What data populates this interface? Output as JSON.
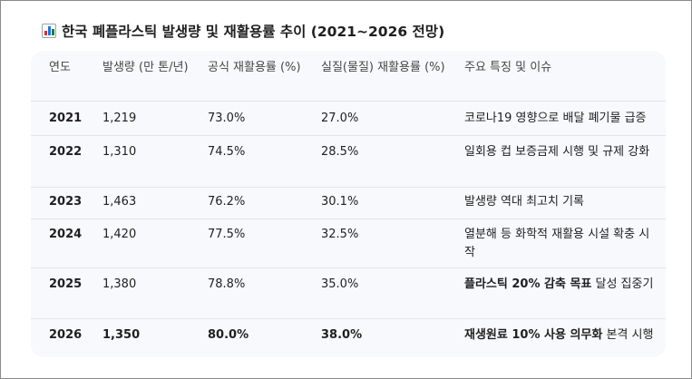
{
  "title": "한국 폐플라스틱 발생량 및 재활용률 추이 (2021~2026 전망)",
  "icon": "bar-chart-icon",
  "table": {
    "headers": [
      "연도",
      "발생량 (만 톤/년)",
      "공식 재활용률 (%)",
      "실질(물질) 재활용률 (%)",
      "주요 특징 및 이슈"
    ],
    "rows": [
      {
        "year": "2021",
        "amount": "1,219",
        "official": "73.0%",
        "real": "27.0%",
        "note_bold": "",
        "note": "코로나19 영향으로 배달 폐기물 급증"
      },
      {
        "year": "2022",
        "amount": "1,310",
        "official": "74.5%",
        "real": "28.5%",
        "note_bold": "",
        "note": "일회용 컵 보증금제 시행 및 규제 강화"
      },
      {
        "year": "2023",
        "amount": "1,463",
        "official": "76.2%",
        "real": "30.1%",
        "note_bold": "",
        "note": "발생량 역대 최고치 기록"
      },
      {
        "year": "2024",
        "amount": "1,420",
        "official": "77.5%",
        "real": "32.5%",
        "note_bold": "",
        "note": "열분해 등 화학적 재활용 시설 확충 시작"
      },
      {
        "year": "2025",
        "amount": "1,380",
        "official": "78.8%",
        "real": "35.0%",
        "note_bold": "플라스틱 20% 감축 목표",
        "note": " 달성 집중기"
      },
      {
        "year": "2026",
        "amount": "1,350",
        "official": "80.0%",
        "real": "38.0%",
        "note_bold": "재생원료 10% 사용 의무화",
        "note": " 본격 시행"
      }
    ]
  }
}
